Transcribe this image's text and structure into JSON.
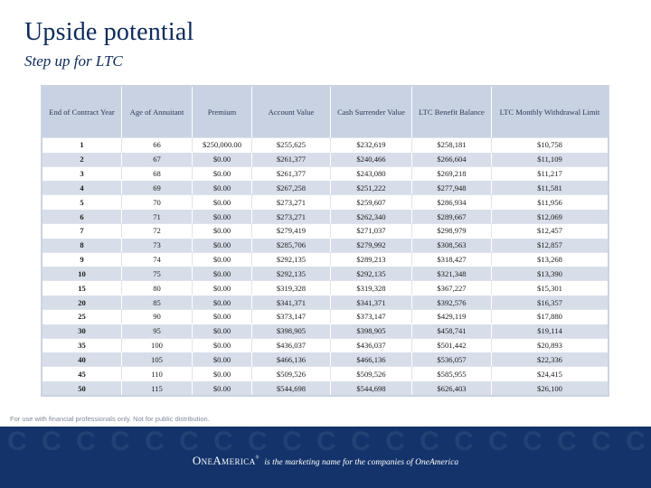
{
  "title": "Upside potential",
  "subtitle": "Step up for LTC",
  "table": {
    "headers": [
      "End of Contract Year",
      "Age of Annuitant",
      "Premium",
      "Account Value",
      "Cash Surrender Value",
      "LTC Benefit Balance",
      "LTC Monthly Withdrawal Limit"
    ],
    "rows": [
      [
        "1",
        "66",
        "$250,000.00",
        "$255,625",
        "$232,619",
        "$258,181",
        "$10,758"
      ],
      [
        "2",
        "67",
        "$0.00",
        "$261,377",
        "$240,466",
        "$266,604",
        "$11,109"
      ],
      [
        "3",
        "68",
        "$0.00",
        "$261,377",
        "$243,080",
        "$269,218",
        "$11,217"
      ],
      [
        "4",
        "69",
        "$0.00",
        "$267,258",
        "$251,222",
        "$277,948",
        "$11,581"
      ],
      [
        "5",
        "70",
        "$0.00",
        "$273,271",
        "$259,607",
        "$286,934",
        "$11,956"
      ],
      [
        "6",
        "71",
        "$0.00",
        "$273,271",
        "$262,340",
        "$289,667",
        "$12,069"
      ],
      [
        "7",
        "72",
        "$0.00",
        "$279,419",
        "$271,037",
        "$298,979",
        "$12,457"
      ],
      [
        "8",
        "73",
        "$0.00",
        "$285,706",
        "$279,992",
        "$308,563",
        "$12,857"
      ],
      [
        "9",
        "74",
        "$0.00",
        "$292,135",
        "$289,213",
        "$318,427",
        "$13,268"
      ],
      [
        "10",
        "75",
        "$0.00",
        "$292,135",
        "$292,135",
        "$321,348",
        "$13,390"
      ],
      [
        "15",
        "80",
        "$0.00",
        "$319,328",
        "$319,328",
        "$367,227",
        "$15,301"
      ],
      [
        "20",
        "85",
        "$0.00",
        "$341,371",
        "$341,371",
        "$392,576",
        "$16,357"
      ],
      [
        "25",
        "90",
        "$0.00",
        "$373,147",
        "$373,147",
        "$429,119",
        "$17,880"
      ],
      [
        "30",
        "95",
        "$0.00",
        "$398,905",
        "$398,905",
        "$458,741",
        "$19,114"
      ],
      [
        "35",
        "100",
        "$0.00",
        "$436,037",
        "$436,037",
        "$501,442",
        "$20,893"
      ],
      [
        "40",
        "105",
        "$0.00",
        "$466,136",
        "$466,136",
        "$536,057",
        "$22,336"
      ],
      [
        "45",
        "110",
        "$0.00",
        "$509,526",
        "$509,526",
        "$585,955",
        "$24,415"
      ],
      [
        "50",
        "115",
        "$0.00",
        "$544,698",
        "$544,698",
        "$626,403",
        "$26,100"
      ]
    ]
  },
  "disclaimer": "For use with financial professionals only. Not for public distribution.",
  "footer": {
    "brand": "OneAmerica",
    "trademark": "®",
    "tagline": "is the marketing name for the companies of OneAmerica"
  },
  "colors": {
    "title": "#0c2a5a",
    "header_bg": "#c9d2e3",
    "stripe": "#d7deea",
    "footer_bg": "#13336a"
  }
}
